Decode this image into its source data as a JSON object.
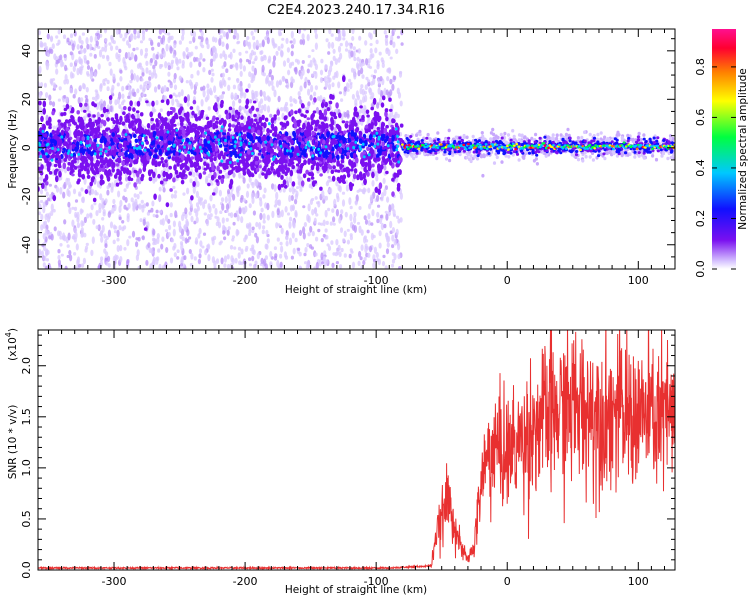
{
  "figure": {
    "title": "C2E4.2023.240.17.34.R16"
  },
  "chart_data": [
    {
      "type": "heatmap",
      "panel": "spectrogram",
      "xlabel": "Height of straight line (km)",
      "ylabel": "Frequency (Hz)",
      "xlim": [
        -358,
        128
      ],
      "ylim": [
        -50,
        49
      ],
      "xticks": [
        -300,
        -200,
        -100,
        0,
        100
      ],
      "yticks": [
        -40,
        -20,
        0,
        20,
        40
      ],
      "xtick_labels": [
        "-300",
        "-200",
        "-100",
        "0",
        "100"
      ],
      "ytick_labels": [
        "-40",
        "-20",
        "0",
        "20",
        "40"
      ],
      "description_values": {
        "noise_region_x": [
          -358,
          -80
        ],
        "noise_band_center_hz": 1,
        "noise_band_halfwidth_hz": 12,
        "signal_region_x": [
          -80,
          128
        ],
        "signal_line_center_hz": 0.5
      },
      "colorbar": {
        "label": "Normalized spectral amplitude",
        "ticks": [
          0.0,
          0.2,
          0.4,
          0.6,
          0.8
        ],
        "tick_labels": [
          "0.0",
          "0.2",
          "0.4",
          "0.6",
          "0.8"
        ],
        "range": [
          0.0,
          0.95
        ],
        "colors": [
          "#d9c8ff",
          "#7a10f0",
          "#1010ff",
          "#00c8ff",
          "#00ff40",
          "#ffff00",
          "#ff8000",
          "#ff0030",
          "#ff1090"
        ]
      }
    },
    {
      "type": "line",
      "panel": "snr",
      "xlabel": "Height of straight line (km)",
      "ylabel": "SNR (10 * v/v)",
      "y_multiplier": "(x10",
      "y_multiplier_exp": "4",
      "y_multiplier_close": ")",
      "xlim": [
        -358,
        128
      ],
      "ylim": [
        0.0,
        2.35
      ],
      "xticks": [
        -300,
        -200,
        -100,
        0,
        100
      ],
      "yticks": [
        0.0,
        0.5,
        1.0,
        1.5,
        2.0
      ],
      "xtick_labels": [
        "-300",
        "-200",
        "-100",
        "0",
        "100"
      ],
      "ytick_labels": [
        "0.0",
        "0.5",
        "1.0",
        "1.5",
        "2.0"
      ],
      "series": [
        {
          "color": "#e83030",
          "envelope": [
            {
              "x": -358,
              "y": 0.02
            },
            {
              "x": -90,
              "y": 0.02
            },
            {
              "x": -58,
              "y": 0.04
            },
            {
              "x": -55,
              "y": 0.3
            },
            {
              "x": -50,
              "y": 0.5
            },
            {
              "x": -45,
              "y": 0.7
            },
            {
              "x": -40,
              "y": 0.45
            },
            {
              "x": -35,
              "y": 0.2
            },
            {
              "x": -30,
              "y": 0.1
            },
            {
              "x": -25,
              "y": 0.25
            },
            {
              "x": -20,
              "y": 0.85
            },
            {
              "x": -15,
              "y": 1.1
            },
            {
              "x": -10,
              "y": 1.2
            },
            {
              "x": 0,
              "y": 1.15
            },
            {
              "x": 10,
              "y": 1.25
            },
            {
              "x": 20,
              "y": 1.4
            },
            {
              "x": 30,
              "y": 1.5
            },
            {
              "x": 50,
              "y": 1.6
            },
            {
              "x": 70,
              "y": 1.55
            },
            {
              "x": 100,
              "y": 1.5
            },
            {
              "x": 128,
              "y": 1.5
            }
          ]
        }
      ]
    }
  ]
}
